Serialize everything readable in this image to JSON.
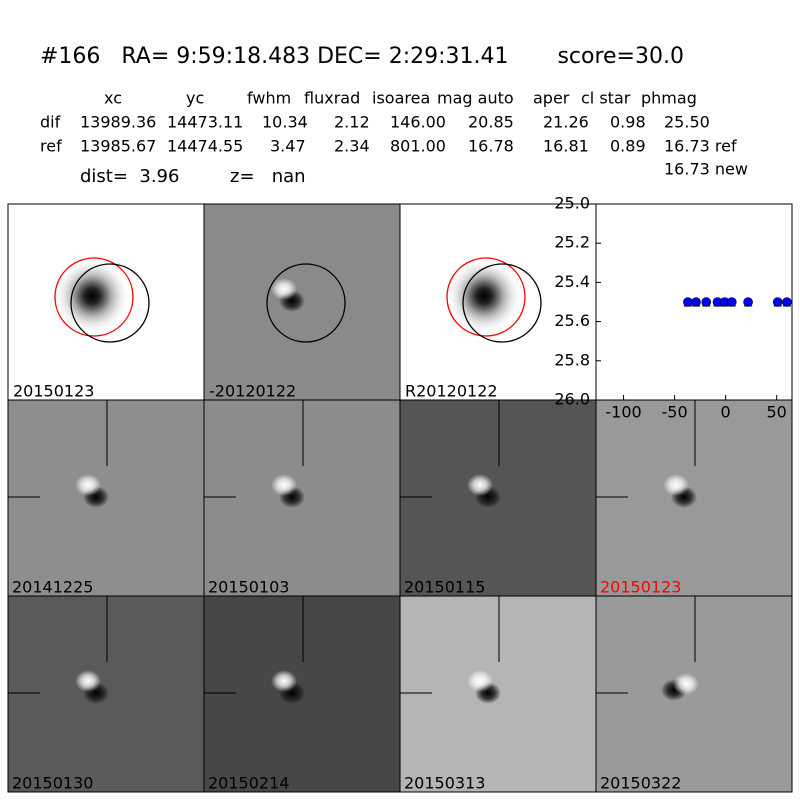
{
  "header": {
    "title": "#166   RA= 9:59:18.483 DEC= 2:29:31.41       score=30.0"
  },
  "table": {
    "columns": [
      "xc",
      "yc",
      "fwhm",
      "fluxrad",
      "isoarea",
      "mag auto",
      "aper",
      "cl star",
      "phmag"
    ],
    "rows": [
      [
        "dif",
        "13989.36",
        "14473.11",
        "10.34",
        "2.12",
        "146.00",
        "20.85",
        "21.26",
        "0.98",
        "25.50"
      ],
      [
        "ref",
        "13985.67",
        "14474.55",
        "3.47",
        "2.34",
        "801.00",
        "16.78",
        "16.81",
        "0.89",
        "16.73 ref"
      ]
    ],
    "new_phmag": "16.73 new"
  },
  "dist": "dist=  3.96",
  "z": "z=   nan",
  "top_panels": [
    {
      "label": "20150123",
      "background": "#ffffff"
    },
    {
      "label": "-20120122",
      "background": "#8a8a8a"
    },
    {
      "label": "R20120122",
      "background": "#ffffff"
    }
  ],
  "panels": [
    {
      "label": "20141225",
      "background": "#8e8e8e"
    },
    {
      "label": "20150103",
      "background": "#8c8c8c"
    },
    {
      "label": "20150115",
      "background": "#555555"
    },
    {
      "label": "20150123",
      "background": "#999999",
      "label_color": "#ff0000"
    },
    {
      "label": "20150130",
      "background": "#5a5a5a"
    },
    {
      "label": "20150214",
      "background": "#474747"
    },
    {
      "label": "20150313",
      "background": "#b5b5b5"
    },
    {
      "label": "20150322",
      "background": "#9a9a9a"
    }
  ],
  "chart_data": {
    "type": "scatter",
    "color": "#0000ff",
    "x": [
      -37,
      -29,
      -19,
      -8,
      -1,
      6,
      22,
      51,
      60
    ],
    "values": [
      25.5,
      25.5,
      25.5,
      25.5,
      25.5,
      25.5,
      25.5,
      25.5,
      25.5
    ],
    "xlim": [
      -127,
      65
    ],
    "xticks": [
      -100,
      -50,
      0,
      50
    ],
    "ylim": [
      26.0,
      25.0
    ],
    "yticks": [
      {
        "value": 25.0,
        "label": "25.0"
      },
      {
        "value": 25.2,
        "label": "25.2"
      },
      {
        "value": 25.4,
        "label": "25.4"
      },
      {
        "value": 25.6,
        "label": "25.6"
      },
      {
        "value": 25.8,
        "label": "25.8"
      },
      {
        "value": 26.0,
        "label": "26.0"
      }
    ]
  }
}
